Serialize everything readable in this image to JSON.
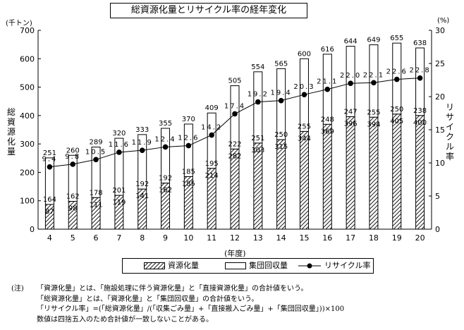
{
  "title": "総資源化量とリサイクル率の経年変化",
  "left_unit": "(千トン)",
  "right_unit": "(%)",
  "left_axis_label": "総資源化量",
  "right_axis_label": "リサイクル率",
  "x_axis_label": "(年度)",
  "legend": {
    "resource": "資源化量",
    "collection": "集団回収量",
    "rate": "リサイクル率"
  },
  "notes": {
    "lead": "(注)",
    "line1": "「資源化量」とは、「施設処理に伴う資源化量」と「直接資源化量」の合計値をいう。",
    "line2": "「総資源化量」とは、「資源化量」と「集団回収量」の合計値をいう。",
    "line3": "「リサイクル率」=(「総資源化量」/(「収集ごみ量」+「直接搬入ごみ量」+「集団回収量」))×100",
    "line4": "数値は四捨五入のため合計値が一致しないことがある。"
  },
  "chart_data": {
    "type": "bar",
    "categories": [
      "4",
      "5",
      "6",
      "7",
      "8",
      "9",
      "10",
      "11",
      "12",
      "13",
      "14",
      "15",
      "16",
      "17",
      "18",
      "19",
      "20"
    ],
    "series": [
      {
        "name": "資源化量",
        "values": [
          87,
          98,
          111,
          119,
          141,
          162,
          185,
          214,
          282,
          303,
          315,
          344,
          369,
          396,
          394,
          405,
          400
        ]
      },
      {
        "name": "集団回収量",
        "values": [
          164,
          162,
          178,
          201,
          192,
          192,
          185,
          195,
          222,
          251,
          250,
          255,
          248,
          247,
          255,
          250,
          238
        ]
      },
      {
        "name": "リサイクル率",
        "axis": "right",
        "values": [
          9.4,
          9.8,
          10.5,
          11.6,
          11.9,
          12.4,
          12.6,
          14.2,
          17.4,
          19.2,
          19.4,
          20.3,
          21.1,
          22.0,
          22.1,
          22.6,
          22.8
        ]
      }
    ],
    "totals": [
      251,
      260,
      289,
      320,
      333,
      355,
      370,
      409,
      505,
      554,
      565,
      600,
      616,
      644,
      649,
      655,
      638
    ],
    "ylim": [
      0,
      700
    ],
    "yticks": [
      0,
      100,
      200,
      300,
      400,
      500,
      600,
      700
    ],
    "y2lim": [
      0,
      30
    ],
    "y2ticks": [
      0,
      5,
      10,
      15,
      20,
      25,
      30
    ],
    "grid": false,
    "legend_position": "bottom"
  }
}
